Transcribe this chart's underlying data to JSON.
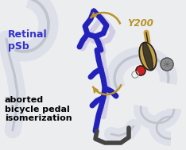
{
  "bg_color": "#ecedef",
  "label_retinal": "Retinal\npSb",
  "label_retinal_color": "#3333cc",
  "label_y200": "Y200",
  "label_y200_color": "#b8942a",
  "label_aborted": "aborted\nbicycle pedal\nisomerization",
  "label_aborted_color": "#000000",
  "helix_color": "#dde0e8",
  "helix_stroke": "#c0c4cc",
  "retinal_blue_color": "#2222bb",
  "retinal_ghost_color": "#c8c0e0",
  "y200_stick_color": "#c8a040",
  "y200_black_color": "#222222",
  "y200_red_color": "#cc2222",
  "y200_white_color": "#f0f0f0",
  "y200_gray_color": "#909090",
  "arrow_color": "#b8942a",
  "lys_color": "#444444",
  "figsize": [
    2.34,
    1.89
  ],
  "dpi": 100
}
